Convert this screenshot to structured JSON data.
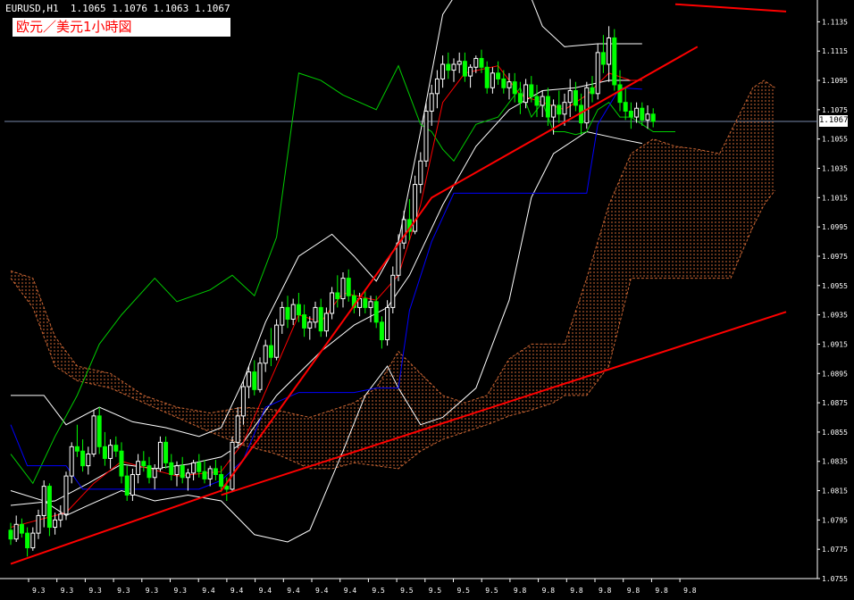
{
  "header": {
    "symbol_line": "EURUSD,H1  1.1065 1.1076 1.1063 1.1067",
    "title": "欧元／美元1小時図"
  },
  "current_price_label": "1.1067",
  "colors": {
    "background": "#000000",
    "axis": "#ffffff",
    "candle_up": "#ffffff",
    "candle_down": "#00ff00",
    "bollinger": "#ffffff",
    "tenkan": "#ff0000",
    "kijun": "#0000ff",
    "chikou": "#00cc00",
    "kumo": "#cc6633",
    "trendline": "#ff0000"
  },
  "chart_data": {
    "type": "line",
    "series_kind": "candlestick with Ichimoku cloud and Bollinger bands",
    "ylim": [
      1.0755,
      1.1145
    ],
    "y_ticks": [
      "1.1135",
      "1.1115",
      "1.1095",
      "1.1075",
      "1.1055",
      "1.1035",
      "1.1015",
      "1.0995",
      "1.0975",
      "1.0955",
      "1.0935",
      "1.0915",
      "1.0895",
      "1.0875",
      "1.0855",
      "1.0835",
      "1.0815",
      "1.0795",
      "1.0775",
      "1.0755"
    ],
    "x_ticks": [
      "9.3",
      "9.3",
      "9.3",
      "9.3",
      "9.3",
      "9.3",
      "9.4",
      "9.4",
      "9.4",
      "9.4",
      "9.4",
      "9.4",
      "9.5",
      "9.5",
      "9.5",
      "9.5",
      "9.5",
      "9.8",
      "9.8",
      "9.8",
      "9.8",
      "9.8",
      "9.8",
      "9.8"
    ],
    "x_count": 120,
    "current_price": 1.1067,
    "candles": [
      [
        1.0788,
        1.0793,
        1.0778,
        1.0782
      ],
      [
        1.0782,
        1.0798,
        1.078,
        1.0792
      ],
      [
        1.0792,
        1.0796,
        1.0783,
        1.0786
      ],
      [
        1.0786,
        1.079,
        1.077,
        1.0776
      ],
      [
        1.0776,
        1.079,
        1.0774,
        1.0786
      ],
      [
        1.0786,
        1.0802,
        1.0782,
        1.0798
      ],
      [
        1.0798,
        1.0822,
        1.079,
        1.0818
      ],
      [
        1.0818,
        1.082,
        1.0784,
        1.079
      ],
      [
        1.079,
        1.08,
        1.0785,
        1.0795
      ],
      [
        1.0795,
        1.0805,
        1.079,
        1.0799
      ],
      [
        1.0799,
        1.0828,
        1.0795,
        1.0825
      ],
      [
        1.0825,
        1.0848,
        1.082,
        1.0845
      ],
      [
        1.0845,
        1.086,
        1.0838,
        1.0842
      ],
      [
        1.0842,
        1.085,
        1.0828,
        1.0832
      ],
      [
        1.0832,
        1.0845,
        1.0826,
        1.084
      ],
      [
        1.084,
        1.087,
        1.0838,
        1.0866
      ],
      [
        1.0866,
        1.0872,
        1.084,
        1.0845
      ],
      [
        1.0845,
        1.0855,
        1.0832,
        1.0837
      ],
      [
        1.0837,
        1.085,
        1.083,
        1.0846
      ],
      [
        1.0846,
        1.0852,
        1.0838,
        1.0842
      ],
      [
        1.0842,
        1.0848,
        1.082,
        1.0825
      ],
      [
        1.0825,
        1.0832,
        1.0808,
        1.0812
      ],
      [
        1.0812,
        1.083,
        1.0808,
        1.0826
      ],
      [
        1.0826,
        1.084,
        1.082,
        1.0835
      ],
      [
        1.0835,
        1.0842,
        1.0828,
        1.0832
      ],
      [
        1.0832,
        1.0838,
        1.082,
        1.0824
      ],
      [
        1.0824,
        1.0833,
        1.0816,
        1.083
      ],
      [
        1.083,
        1.0852,
        1.0828,
        1.0848
      ],
      [
        1.0848,
        1.0852,
        1.083,
        1.0834
      ],
      [
        1.0834,
        1.084,
        1.0822,
        1.0826
      ],
      [
        1.0826,
        1.0835,
        1.0818,
        1.0832
      ],
      [
        1.0832,
        1.0838,
        1.082,
        1.0824
      ],
      [
        1.0824,
        1.083,
        1.0815,
        1.0827
      ],
      [
        1.0827,
        1.0836,
        1.0822,
        1.0834
      ],
      [
        1.0834,
        1.084,
        1.0824,
        1.0828
      ],
      [
        1.0828,
        1.0836,
        1.082,
        1.0823
      ],
      [
        1.0823,
        1.0832,
        1.0818,
        1.083
      ],
      [
        1.083,
        1.0836,
        1.0822,
        1.0826
      ],
      [
        1.0826,
        1.0832,
        1.0814,
        1.0818
      ],
      [
        1.0818,
        1.0824,
        1.0808,
        1.0816
      ],
      [
        1.0816,
        1.0852,
        1.0814,
        1.0848
      ],
      [
        1.0848,
        1.0872,
        1.0844,
        1.0866
      ],
      [
        1.0866,
        1.089,
        1.086,
        1.0886
      ],
      [
        1.0886,
        1.09,
        1.0878,
        1.0896
      ],
      [
        1.0896,
        1.0904,
        1.088,
        1.0884
      ],
      [
        1.0884,
        1.0906,
        1.0882,
        1.0902
      ],
      [
        1.0902,
        1.0918,
        1.0896,
        1.0914
      ],
      [
        1.0914,
        1.0926,
        1.09,
        1.0906
      ],
      [
        1.0906,
        1.0932,
        1.0904,
        1.0928
      ],
      [
        1.0928,
        1.0944,
        1.0922,
        1.094
      ],
      [
        1.094,
        1.0948,
        1.0926,
        1.0932
      ],
      [
        1.0932,
        1.0946,
        1.0928,
        1.0942
      ],
      [
        1.0942,
        1.095,
        1.093,
        1.0935
      ],
      [
        1.0935,
        1.0942,
        1.092,
        1.0926
      ],
      [
        1.0926,
        1.0934,
        1.0918,
        1.093
      ],
      [
        1.093,
        1.0944,
        1.0926,
        1.094
      ],
      [
        1.094,
        1.0946,
        1.092,
        1.0924
      ],
      [
        1.0924,
        1.094,
        1.092,
        1.0936
      ],
      [
        1.0936,
        1.0954,
        1.0932,
        1.095
      ],
      [
        1.095,
        1.0962,
        1.094,
        1.0946
      ],
      [
        1.0946,
        1.0964,
        1.094,
        1.096
      ],
      [
        1.096,
        1.0966,
        1.0944,
        1.0948
      ],
      [
        1.0948,
        1.0952,
        1.0936,
        1.094
      ],
      [
        1.094,
        1.095,
        1.0934,
        1.0946
      ],
      [
        1.0946,
        1.0952,
        1.0936,
        1.094
      ],
      [
        1.094,
        1.0948,
        1.093,
        1.0944
      ],
      [
        1.0944,
        1.0948,
        1.0926,
        1.093
      ],
      [
        1.093,
        1.0934,
        1.0912,
        1.0918
      ],
      [
        1.0918,
        1.0945,
        1.0914,
        1.094
      ],
      [
        1.094,
        1.0968,
        1.0936,
        1.0962
      ],
      [
        1.0962,
        1.099,
        1.0958,
        1.0984
      ],
      [
        1.0984,
        1.1006,
        1.098,
        1.1
      ],
      [
        1.1,
        1.1014,
        1.0986,
        1.0992
      ],
      [
        1.0992,
        1.103,
        1.099,
        1.1024
      ],
      [
        1.1024,
        1.1046,
        1.1018,
        1.104
      ],
      [
        1.104,
        1.108,
        1.1036,
        1.1074
      ],
      [
        1.1074,
        1.1092,
        1.1064,
        1.1086
      ],
      [
        1.1086,
        1.1102,
        1.1076,
        1.1096
      ],
      [
        1.1096,
        1.1112,
        1.109,
        1.1106
      ],
      [
        1.1106,
        1.1114,
        1.1096,
        1.1102
      ],
      [
        1.1102,
        1.111,
        1.1094,
        1.1106
      ],
      [
        1.1106,
        1.1114,
        1.11,
        1.1108
      ],
      [
        1.1108,
        1.1114,
        1.1094,
        1.1098
      ],
      [
        1.1098,
        1.1106,
        1.109,
        1.1104
      ],
      [
        1.1104,
        1.1112,
        1.11,
        1.111
      ],
      [
        1.111,
        1.1116,
        1.11,
        1.1104
      ],
      [
        1.1104,
        1.1108,
        1.1086,
        1.109
      ],
      [
        1.109,
        1.1104,
        1.1086,
        1.11
      ],
      [
        1.11,
        1.1108,
        1.1092,
        1.1096
      ],
      [
        1.1096,
        1.1102,
        1.1086,
        1.109
      ],
      [
        1.109,
        1.11,
        1.1082,
        1.1094
      ],
      [
        1.1094,
        1.11,
        1.108,
        1.1086
      ],
      [
        1.1086,
        1.1094,
        1.1072,
        1.108
      ],
      [
        1.108,
        1.1096,
        1.1076,
        1.1092
      ],
      [
        1.1092,
        1.1098,
        1.108,
        1.1084
      ],
      [
        1.1084,
        1.1092,
        1.107,
        1.1078
      ],
      [
        1.1078,
        1.1088,
        1.107,
        1.1084
      ],
      [
        1.1084,
        1.109,
        1.1064,
        1.107
      ],
      [
        1.107,
        1.1082,
        1.1058,
        1.1078
      ],
      [
        1.1078,
        1.1088,
        1.1066,
        1.1072
      ],
      [
        1.1072,
        1.1086,
        1.1064,
        1.108
      ],
      [
        1.108,
        1.1096,
        1.107,
        1.1088
      ],
      [
        1.1088,
        1.1094,
        1.1074,
        1.1078
      ],
      [
        1.1078,
        1.1086,
        1.1058,
        1.1066
      ],
      [
        1.1066,
        1.1094,
        1.1062,
        1.109
      ],
      [
        1.109,
        1.1098,
        1.108,
        1.1086
      ],
      [
        1.1086,
        1.112,
        1.1082,
        1.1114
      ],
      [
        1.1114,
        1.1126,
        1.11,
        1.1106
      ],
      [
        1.1106,
        1.1132,
        1.1094,
        1.1124
      ],
      [
        1.1124,
        1.113,
        1.1088,
        1.1092
      ],
      [
        1.1092,
        1.1102,
        1.1074,
        1.108
      ],
      [
        1.108,
        1.109,
        1.1068,
        1.1074
      ],
      [
        1.1074,
        1.108,
        1.1062,
        1.107
      ],
      [
        1.107,
        1.108,
        1.1066,
        1.1076
      ],
      [
        1.1076,
        1.108,
        1.1064,
        1.1068
      ],
      [
        1.1068,
        1.1078,
        1.1062,
        1.1072
      ],
      [
        1.1072,
        1.1076,
        1.1063,
        1.1067
      ]
    ],
    "tenkan": [
      [
        0,
        1.079
      ],
      [
        10,
        1.08
      ],
      [
        15,
        1.082
      ],
      [
        20,
        1.0835
      ],
      [
        25,
        1.083
      ],
      [
        30,
        1.0825
      ],
      [
        38,
        1.0828
      ],
      [
        42,
        1.0848
      ],
      [
        48,
        1.09
      ],
      [
        52,
        1.0935
      ],
      [
        56,
        1.093
      ],
      [
        60,
        1.095
      ],
      [
        66,
        1.0945
      ],
      [
        70,
        1.0962
      ],
      [
        74,
        1.101
      ],
      [
        78,
        1.108
      ],
      [
        82,
        1.11
      ],
      [
        88,
        1.1105
      ],
      [
        92,
        1.1085
      ],
      [
        96,
        1.108
      ],
      [
        100,
        1.1075
      ],
      [
        104,
        1.1085
      ],
      [
        108,
        1.11
      ],
      [
        112,
        1.1095
      ],
      [
        114,
        1.1095
      ]
    ],
    "kijun": [
      [
        0,
        1.086
      ],
      [
        3,
        1.0832
      ],
      [
        10,
        1.0832
      ],
      [
        13,
        1.0816
      ],
      [
        34,
        1.0816
      ],
      [
        38,
        1.0822
      ],
      [
        42,
        1.0836
      ],
      [
        46,
        1.0872
      ],
      [
        52,
        1.0882
      ],
      [
        62,
        1.0882
      ],
      [
        66,
        1.0885
      ],
      [
        70,
        1.0885
      ],
      [
        72,
        1.0938
      ],
      [
        76,
        1.0985
      ],
      [
        80,
        1.1018
      ],
      [
        100,
        1.1018
      ],
      [
        104,
        1.1018
      ],
      [
        106,
        1.1065
      ],
      [
        110,
        1.109
      ],
      [
        114,
        1.1089
      ]
    ],
    "bollinger_mid": [
      [
        0,
        1.0805
      ],
      [
        8,
        1.0808
      ],
      [
        14,
        1.082
      ],
      [
        20,
        1.0833
      ],
      [
        26,
        1.083
      ],
      [
        32,
        1.0833
      ],
      [
        38,
        1.0838
      ],
      [
        42,
        1.0848
      ],
      [
        48,
        1.088
      ],
      [
        56,
        1.091
      ],
      [
        62,
        1.0928
      ],
      [
        68,
        1.094
      ],
      [
        72,
        1.0962
      ],
      [
        78,
        1.101
      ],
      [
        84,
        1.105
      ],
      [
        90,
        1.1075
      ],
      [
        96,
        1.1088
      ],
      [
        102,
        1.109
      ],
      [
        108,
        1.1095
      ],
      [
        114,
        1.1095
      ]
    ],
    "bollinger_upper": [
      [
        0,
        1.088
      ],
      [
        6,
        1.088
      ],
      [
        10,
        1.086
      ],
      [
        16,
        1.0872
      ],
      [
        22,
        1.0862
      ],
      [
        28,
        1.0858
      ],
      [
        34,
        1.0852
      ],
      [
        38,
        1.0858
      ],
      [
        42,
        1.089
      ],
      [
        46,
        1.093
      ],
      [
        52,
        1.0975
      ],
      [
        58,
        1.099
      ],
      [
        62,
        1.0975
      ],
      [
        66,
        1.0958
      ],
      [
        70,
        1.0985
      ],
      [
        74,
        1.106
      ],
      [
        78,
        1.114
      ],
      [
        84,
        1.1175
      ],
      [
        92,
        1.117
      ],
      [
        96,
        1.1132
      ],
      [
        100,
        1.1118
      ],
      [
        106,
        1.112
      ],
      [
        110,
        1.112
      ],
      [
        114,
        1.112
      ]
    ],
    "bollinger_lower": [
      [
        0,
        1.0815
      ],
      [
        6,
        1.0808
      ],
      [
        10,
        1.0798
      ],
      [
        14,
        1.0805
      ],
      [
        20,
        1.0815
      ],
      [
        26,
        1.0808
      ],
      [
        32,
        1.0812
      ],
      [
        38,
        1.0808
      ],
      [
        44,
        1.0785
      ],
      [
        50,
        1.078
      ],
      [
        54,
        1.0788
      ],
      [
        60,
        1.0842
      ],
      [
        64,
        1.088
      ],
      [
        68,
        1.09
      ],
      [
        70,
        1.0885
      ],
      [
        74,
        1.086
      ],
      [
        78,
        1.0865
      ],
      [
        84,
        1.0885
      ],
      [
        90,
        1.0945
      ],
      [
        94,
        1.1015
      ],
      [
        98,
        1.1045
      ],
      [
        104,
        1.106
      ],
      [
        110,
        1.1055
      ],
      [
        114,
        1.1052
      ]
    ],
    "chikou": [
      [
        0,
        1.084
      ],
      [
        4,
        1.082
      ],
      [
        8,
        1.0852
      ],
      [
        12,
        1.088
      ],
      [
        16,
        1.0915
      ],
      [
        20,
        1.0935
      ],
      [
        26,
        1.096
      ],
      [
        30,
        1.0944
      ],
      [
        36,
        1.0952
      ],
      [
        40,
        1.0962
      ],
      [
        44,
        1.0948
      ],
      [
        48,
        1.0988
      ],
      [
        52,
        1.11
      ],
      [
        56,
        1.1095
      ],
      [
        60,
        1.1085
      ],
      [
        66,
        1.1075
      ],
      [
        70,
        1.1105
      ],
      [
        74,
        1.1065
      ],
      [
        76,
        1.106
      ],
      [
        78,
        1.1048
      ],
      [
        80,
        1.104
      ],
      [
        84,
        1.1065
      ],
      [
        88,
        1.107
      ],
      [
        90,
        1.108
      ],
      [
        92,
        1.109
      ],
      [
        94,
        1.107
      ],
      [
        96,
        1.108
      ],
      [
        98,
        1.106
      ],
      [
        100,
        1.106
      ],
      [
        102,
        1.1058
      ],
      [
        104,
        1.106
      ],
      [
        106,
        1.1075
      ],
      [
        108,
        1.108
      ],
      [
        110,
        1.107
      ],
      [
        112,
        1.107
      ],
      [
        114,
        1.1065
      ],
      [
        116,
        1.106
      ],
      [
        120,
        1.106
      ]
    ],
    "kumo": [
      [
        0,
        1.0965,
        1.096
      ],
      [
        4,
        1.096,
        1.094
      ],
      [
        8,
        1.092,
        1.09
      ],
      [
        12,
        1.09,
        1.089
      ],
      [
        18,
        1.0895,
        1.0885
      ],
      [
        24,
        1.088,
        1.0875
      ],
      [
        30,
        1.0872,
        1.0865
      ],
      [
        36,
        1.0868,
        1.0855
      ],
      [
        42,
        1.0872,
        1.0846
      ],
      [
        48,
        1.087,
        1.084
      ],
      [
        54,
        1.0865,
        1.083
      ],
      [
        58,
        1.087,
        1.083
      ],
      [
        62,
        1.0875,
        1.0834
      ],
      [
        66,
        1.0885,
        1.0832
      ],
      [
        70,
        1.091,
        1.083
      ],
      [
        74,
        1.0895,
        1.0842
      ],
      [
        78,
        1.088,
        1.085
      ],
      [
        82,
        1.0875,
        1.0855
      ],
      [
        86,
        1.088,
        1.086
      ],
      [
        90,
        1.0905,
        1.0866
      ],
      [
        94,
        1.0915,
        1.087
      ],
      [
        98,
        1.0915,
        1.0875
      ],
      [
        100,
        1.0915,
        1.088
      ],
      [
        104,
        1.096,
        1.088
      ],
      [
        108,
        1.101,
        1.09
      ],
      [
        112,
        1.1045,
        1.096
      ],
      [
        116,
        1.1055,
        1.096
      ],
      [
        120,
        1.105,
        1.096
      ],
      [
        124,
        1.1048,
        1.096
      ],
      [
        128,
        1.1045,
        1.096
      ],
      [
        130,
        1.106,
        1.096
      ],
      [
        134,
        1.109,
        1.0995
      ],
      [
        136,
        1.1095,
        1.101
      ],
      [
        138,
        1.109,
        1.102
      ]
    ],
    "trendlines": [
      {
        "points": [
          [
            0,
            1.0765
          ],
          [
            38,
            1.0815
          ],
          [
            76,
            1.1015
          ],
          [
            124,
            1.1118
          ]
        ]
      },
      {
        "points": [
          [
            38,
            1.0812
          ],
          [
            140,
            1.0937
          ]
        ]
      },
      {
        "points": [
          [
            120,
            1.1147
          ],
          [
            140,
            1.1142
          ]
        ]
      }
    ]
  }
}
